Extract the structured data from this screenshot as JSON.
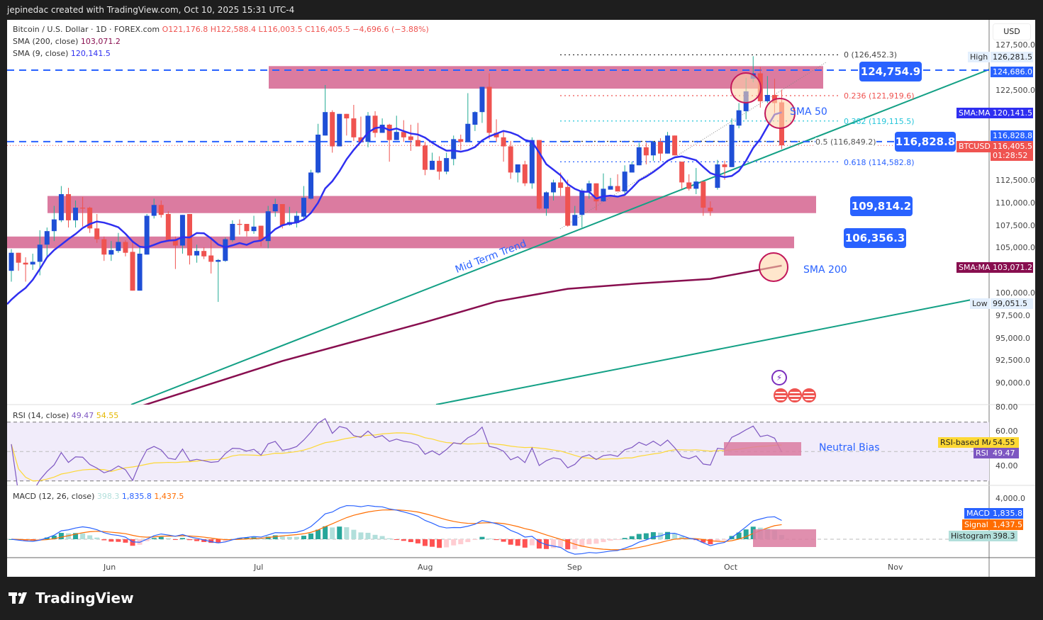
{
  "header": {
    "attribution": "jepinedac created with TradingView.com, Oct 10, 2025 15:31 UTC-4"
  },
  "legend": {
    "symbol": "Bitcoin / U.S. Dollar · 1D · FOREX.com",
    "open": "O121,176.8",
    "high": "H122,588.4",
    "low": "L116,003.5",
    "close": "C116,405.5",
    "change": "−4,696.6 (−3.88%)",
    "sma200_label": "SMA (200, close)",
    "sma200_value": "103,071.2",
    "sma9_label": "SMA (9, close)",
    "sma9_value": "120,141.5"
  },
  "colors": {
    "up": "#1f4fd6",
    "down": "#ef5350",
    "up_wick": "#22ab94",
    "sma9": "#2f2ff0",
    "sma200": "#880e4f",
    "zone": "#db7ba0",
    "trend": "#13a085",
    "rsi": "#7e57c2",
    "rsi_ma": "#fdd835",
    "macd": "#2962ff",
    "signal": "#ff6d00"
  },
  "price_axis": {
    "currency": "USD",
    "ticks": [
      "127,500.0",
      "122,500.0",
      "112,500.0",
      "110,000.0",
      "107,500.0",
      "105,000.0",
      "100,000.0",
      "97,500.0",
      "95,000.0",
      "92,500.0",
      "90,000.0"
    ],
    "tags": {
      "high_label": "High",
      "high_value": "126,281.5",
      "level1": "124,686.0",
      "sma9_tag": "SMA:MA",
      "sma9_tag_value": "120,141.5",
      "level2": "116,828.8",
      "symbol_tag": "BTCUSD",
      "last_price": "116,405.5",
      "countdown": "01:28:52",
      "sma200_tag": "SMA:MA",
      "sma200_tag_value": "103,071.2",
      "low_label": "Low",
      "low_value": "99,051.5"
    }
  },
  "time_axis": [
    "Jun",
    "Jul",
    "Aug",
    "Sep",
    "Oct",
    "Nov"
  ],
  "annotations": {
    "level_boxes": [
      "124,754.9",
      "116,828.8",
      "109,814.2",
      "106,356.3"
    ],
    "fib": [
      "0 (126,452.3)",
      "0.236 (121,919.6)",
      "0.382 (119,115.5)",
      "0.5 (116,849.2)",
      "0.618 (114,582.8)"
    ],
    "sma50_note": "SMA 50",
    "sma200_note": "SMA 200",
    "trend_note": "Mid Term Trend",
    "rsi_note": "Neutral Bias"
  },
  "rsi_pane": {
    "title": "RSI (14, close)",
    "rsi_value": "49.47",
    "ma_value": "54.55",
    "ticks": [
      "80.00",
      "60.00",
      "40.00"
    ],
    "ma_tag": "RSI-based MA",
    "rsi_tag": "RSI"
  },
  "macd_pane": {
    "title": "MACD (12, 26, close)",
    "hist_value": "398.3",
    "macd_value": "1,835.8",
    "signal_value": "1,437.5",
    "tick": "4,000.0",
    "macd_tag": "MACD",
    "signal_tag": "Signal",
    "hist_tag": "Histogram"
  },
  "footer": {
    "brand": "TradingView"
  },
  "chart_data": {
    "type": "candlestick",
    "ylim": [
      87500,
      128500
    ],
    "ohlc": [
      [
        102500,
        104900,
        101300,
        104500
      ],
      [
        104500,
        104500,
        102500,
        103400
      ],
      [
        103400,
        104000,
        101300,
        103200
      ],
      [
        103200,
        104400,
        102600,
        103500
      ],
      [
        103500,
        107000,
        102000,
        105400
      ],
      [
        105400,
        107300,
        104100,
        106900
      ],
      [
        106900,
        109700,
        105800,
        108200
      ],
      [
        108100,
        111900,
        107900,
        111000
      ],
      [
        111000,
        111700,
        107300,
        108100
      ],
      [
        108100,
        110300,
        107300,
        109500
      ],
      [
        109500,
        110700,
        107400,
        109400
      ],
      [
        109500,
        109600,
        106700,
        107200
      ],
      [
        107200,
        108800,
        105600,
        106000
      ],
      [
        106000,
        106300,
        103600,
        104300
      ],
      [
        104300,
        105800,
        103600,
        104800
      ],
      [
        104700,
        106700,
        104500,
        105700
      ],
      [
        105700,
        105900,
        104100,
        104500
      ],
      [
        104600,
        105700,
        100300,
        100300
      ],
      [
        100300,
        105300,
        100300,
        104400
      ],
      [
        104300,
        108800,
        104300,
        108600
      ],
      [
        108600,
        110500,
        108300,
        109800
      ],
      [
        109800,
        110300,
        108400,
        108700
      ],
      [
        108800,
        109100,
        105700,
        105800
      ],
      [
        105900,
        106300,
        102700,
        105300
      ],
      [
        105300,
        108700,
        104400,
        108700
      ],
      [
        108800,
        108800,
        103200,
        104200
      ],
      [
        104200,
        105400,
        103400,
        104700
      ],
      [
        104700,
        105100,
        103800,
        104100
      ],
      [
        104200,
        106300,
        102200,
        103500
      ],
      [
        103500,
        103800,
        99051,
        103700
      ],
      [
        103600,
        106200,
        103500,
        106000
      ],
      [
        105900,
        108100,
        105700,
        107700
      ],
      [
        107700,
        108200,
        106500,
        107600
      ],
      [
        107700,
        107700,
        106300,
        106900
      ],
      [
        106900,
        108600,
        106600,
        107400
      ],
      [
        107500,
        107500,
        105200,
        105800
      ],
      [
        105800,
        109700,
        105000,
        109100
      ],
      [
        109100,
        110500,
        108500,
        109900
      ],
      [
        109900,
        109900,
        107200,
        107500
      ],
      [
        107600,
        109600,
        107500,
        107900
      ],
      [
        107800,
        109100,
        107300,
        108600
      ],
      [
        108500,
        111900,
        108200,
        110600
      ],
      [
        110500,
        113700,
        110400,
        113400
      ],
      [
        113400,
        118800,
        113300,
        117600
      ],
      [
        117500,
        123100,
        117500,
        120100
      ],
      [
        120100,
        120300,
        115600,
        116300
      ],
      [
        116300,
        119900,
        116300,
        119900
      ],
      [
        119900,
        119900,
        117500,
        119400
      ],
      [
        119400,
        120900,
        116900,
        117300
      ],
      [
        117300,
        119600,
        116800,
        116800
      ],
      [
        116800,
        120100,
        116200,
        119700
      ],
      [
        119700,
        120200,
        117300,
        117800
      ],
      [
        117800,
        119400,
        117800,
        118700
      ],
      [
        118700,
        118800,
        114600,
        117000
      ],
      [
        117000,
        119700,
        117000,
        117900
      ],
      [
        117900,
        119200,
        116800,
        117300
      ],
      [
        117400,
        118700,
        115800,
        117000
      ],
      [
        117000,
        118900,
        116300,
        116300
      ],
      [
        116400,
        116800,
        113100,
        113700
      ],
      [
        113700,
        115600,
        113700,
        114700
      ],
      [
        114700,
        115200,
        112600,
        113500
      ],
      [
        113500,
        115600,
        113200,
        115000
      ],
      [
        114900,
        117500,
        114200,
        117100
      ],
      [
        117100,
        117600,
        115900,
        116800
      ],
      [
        116800,
        122200,
        116800,
        118800
      ],
      [
        118700,
        120200,
        118000,
        120100
      ],
      [
        120100,
        122900,
        118900,
        122900
      ],
      [
        122900,
        124400,
        117100,
        117800
      ],
      [
        117800,
        119300,
        116800,
        117300
      ],
      [
        117300,
        118000,
        114600,
        116300
      ],
      [
        116300,
        116900,
        112700,
        113400
      ],
      [
        113400,
        114300,
        112300,
        114300
      ],
      [
        114300,
        114700,
        111900,
        112200
      ],
      [
        112200,
        117300,
        111600,
        117000
      ],
      [
        117000,
        117000,
        109300,
        109400
      ],
      [
        109400,
        111300,
        108600,
        111200
      ],
      [
        111200,
        112600,
        110300,
        112300
      ],
      [
        112300,
        113400,
        110800,
        111700
      ],
      [
        111800,
        112600,
        107400,
        107500
      ],
      [
        107500,
        109700,
        107500,
        108700
      ],
      [
        108700,
        111600,
        107300,
        111400
      ],
      [
        111300,
        112500,
        110500,
        112200
      ],
      [
        112200,
        112200,
        109200,
        110200
      ],
      [
        110200,
        113300,
        110200,
        111600
      ],
      [
        111500,
        112800,
        111500,
        111900
      ],
      [
        111900,
        113200,
        111300,
        111300
      ],
      [
        111300,
        114200,
        110900,
        113500
      ],
      [
        113400,
        114600,
        113400,
        114300
      ],
      [
        114200,
        116700,
        114200,
        116200
      ],
      [
        116200,
        116700,
        114300,
        115300
      ],
      [
        115300,
        116900,
        114700,
        116800
      ],
      [
        116800,
        117200,
        114700,
        115500
      ],
      [
        115500,
        117900,
        115500,
        117500
      ],
      [
        117500,
        117500,
        115300,
        115300
      ],
      [
        114600,
        114600,
        111600,
        112300
      ],
      [
        112300,
        113200,
        111400,
        111600
      ],
      [
        111600,
        113900,
        111000,
        112400
      ],
      [
        112400,
        112400,
        108600,
        109500
      ],
      [
        109500,
        110200,
        108600,
        109100
      ],
      [
        111700,
        114800,
        111500,
        114300
      ],
      [
        114300,
        114700,
        112600,
        114000
      ],
      [
        114000,
        119400,
        114000,
        118700
      ],
      [
        118600,
        121100,
        118300,
        120300
      ],
      [
        120200,
        123900,
        119300,
        122400
      ],
      [
        123800,
        126300,
        123400,
        124400
      ],
      [
        124400,
        125100,
        120600,
        121300
      ],
      [
        121300,
        124100,
        121100,
        122000
      ],
      [
        122000,
        123800,
        120000,
        121100
      ],
      [
        121177,
        122588,
        116004,
        116406
      ]
    ],
    "sma9_leading": [
      99300,
      100000,
      100600,
      101500,
      102700,
      104000,
      104800,
      105400
    ],
    "sma200_points": [
      [
        10,
        85500
      ],
      [
        19,
        87700
      ],
      [
        38,
        92500
      ],
      [
        58,
        96800
      ],
      [
        68,
        99100
      ],
      [
        78,
        100500
      ],
      [
        88,
        101100
      ],
      [
        98,
        101600
      ],
      [
        108,
        103071
      ]
    ],
    "fib_levels": [
      126452.3,
      121919.6,
      119115.5,
      116849.2,
      114582.8
    ],
    "horizontal_levels": [
      124754.9,
      116828.8
    ],
    "zones": [
      [
        122700,
        125200
      ],
      [
        108900,
        110800
      ],
      [
        105000,
        106300
      ]
    ]
  }
}
